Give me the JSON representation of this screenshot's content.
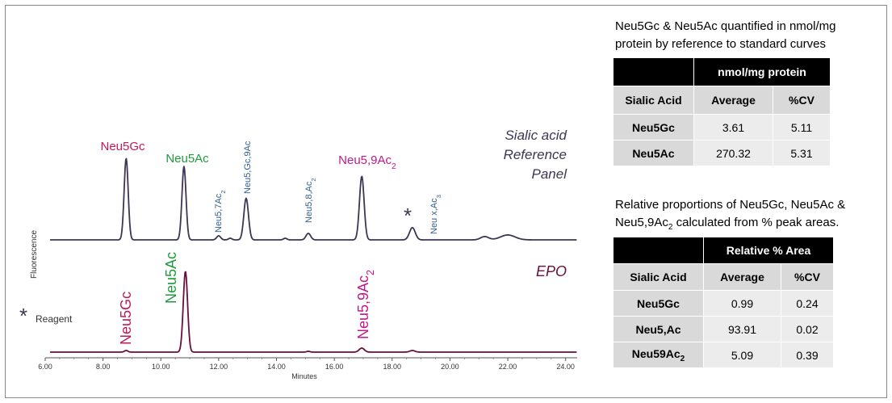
{
  "chart_data": {
    "type": "line",
    "xlabel": "Minutes",
    "ylabel": "Fluorescence",
    "xlim": [
      6.0,
      24.4
    ],
    "x_ticks": [
      "6.00",
      "8.00",
      "10.00",
      "12.00",
      "14.00",
      "16.00",
      "18.00",
      "20.00",
      "22.00",
      "24.00"
    ],
    "series": [
      {
        "name": "Sialic acid Reference Panel",
        "color": "#3d3551",
        "peaks": [
          {
            "label": "Neu5Gc",
            "x": 8.8,
            "h": 1.0,
            "w": 0.07,
            "color": "#c0185a",
            "orient": "h"
          },
          {
            "label": "Neu5Ac",
            "x": 10.8,
            "h": 0.9,
            "w": 0.07,
            "color": "#1d9a3c",
            "orient": "h"
          },
          {
            "label": "Neu5,7Ac2",
            "x": 12.0,
            "h": 0.05,
            "w": 0.07,
            "color": "#2f5e8f",
            "orient": "v"
          },
          {
            "label": "Neu5,Gc,9Ac",
            "x": 12.95,
            "h": 0.51,
            "w": 0.08,
            "color": "#2f5e8f",
            "orient": "v"
          },
          {
            "label": "Neu5,8,Ac2",
            "x": 15.1,
            "h": 0.08,
            "w": 0.08,
            "color": "#2f5e8f",
            "orient": "v"
          },
          {
            "label": "Neu5,9Ac2",
            "x": 16.95,
            "h": 0.78,
            "w": 0.08,
            "color": "#c0188a",
            "orient": "h"
          },
          {
            "label": "Neu x,Ac3",
            "x": 18.7,
            "h": 0.15,
            "w": 0.1,
            "color": "#2f5e8f",
            "orient": "v"
          }
        ],
        "minor_peaks": [
          {
            "x": 12.4,
            "h": 0.02,
            "w": 0.06
          },
          {
            "x": 14.3,
            "h": 0.02,
            "w": 0.06
          },
          {
            "x": 21.2,
            "h": 0.04,
            "w": 0.14
          },
          {
            "x": 22.0,
            "h": 0.06,
            "w": 0.25
          }
        ],
        "panel_label": [
          "Sialic acid",
          "Reference",
          "Panel"
        ]
      },
      {
        "name": "EPO",
        "color": "#6a0f3b",
        "peaks": [
          {
            "label": "Neu5Gc",
            "x": 8.8,
            "h": 0.02,
            "w": 0.06,
            "color": "#c0185a",
            "orient": "v"
          },
          {
            "label": "Neu5Ac",
            "x": 10.85,
            "h": 1.0,
            "w": 0.075,
            "color": "#1d9a3c",
            "orient": "v"
          },
          {
            "label": "Neu5,9Ac2",
            "x": 16.95,
            "h": 0.05,
            "w": 0.09,
            "color": "#c0188a",
            "orient": "v"
          }
        ],
        "minor_peaks": [
          {
            "x": 15.1,
            "h": 0.01,
            "w": 0.06
          },
          {
            "x": 18.7,
            "h": 0.02,
            "w": 0.09
          }
        ],
        "panel_label": [
          "EPO"
        ]
      }
    ],
    "annotations": {
      "asterisk": "*",
      "reagent_label": "Reagent"
    }
  },
  "table1": {
    "caption_lines": [
      "Neu5Gc & Neu5Ac quantified in nmol/mg",
      "protein by reference to standard curves"
    ],
    "group_header": "nmol/mg  protein",
    "columns": [
      "Sialic  Acid",
      "Average",
      "%CV"
    ],
    "rows": [
      [
        "Neu5Gc",
        "3.61",
        "5.11"
      ],
      [
        "Neu5Ac",
        "270.32",
        "5.31"
      ]
    ]
  },
  "table2": {
    "caption_line1": "Relative proportions of Neu5Gc, Neu5Ac &",
    "caption_line2_pre": "Neu5,9Ac",
    "caption_line2_sub": "2",
    "caption_line2_post": " calculated from % peak areas.",
    "group_header": "Relative % Area",
    "columns": [
      "Sialic Acid",
      "Average",
      "%CV"
    ],
    "rows": [
      {
        "name": "Neu5Gc",
        "sub": "",
        "avg": "0.99",
        "cv": "0.24"
      },
      {
        "name": "Neu5,Ac",
        "sub": "",
        "avg": "93.91",
        "cv": "0.02"
      },
      {
        "name": "Neu59Ac",
        "sub": "2",
        "avg": "5.09",
        "cv": "0.39"
      }
    ]
  }
}
